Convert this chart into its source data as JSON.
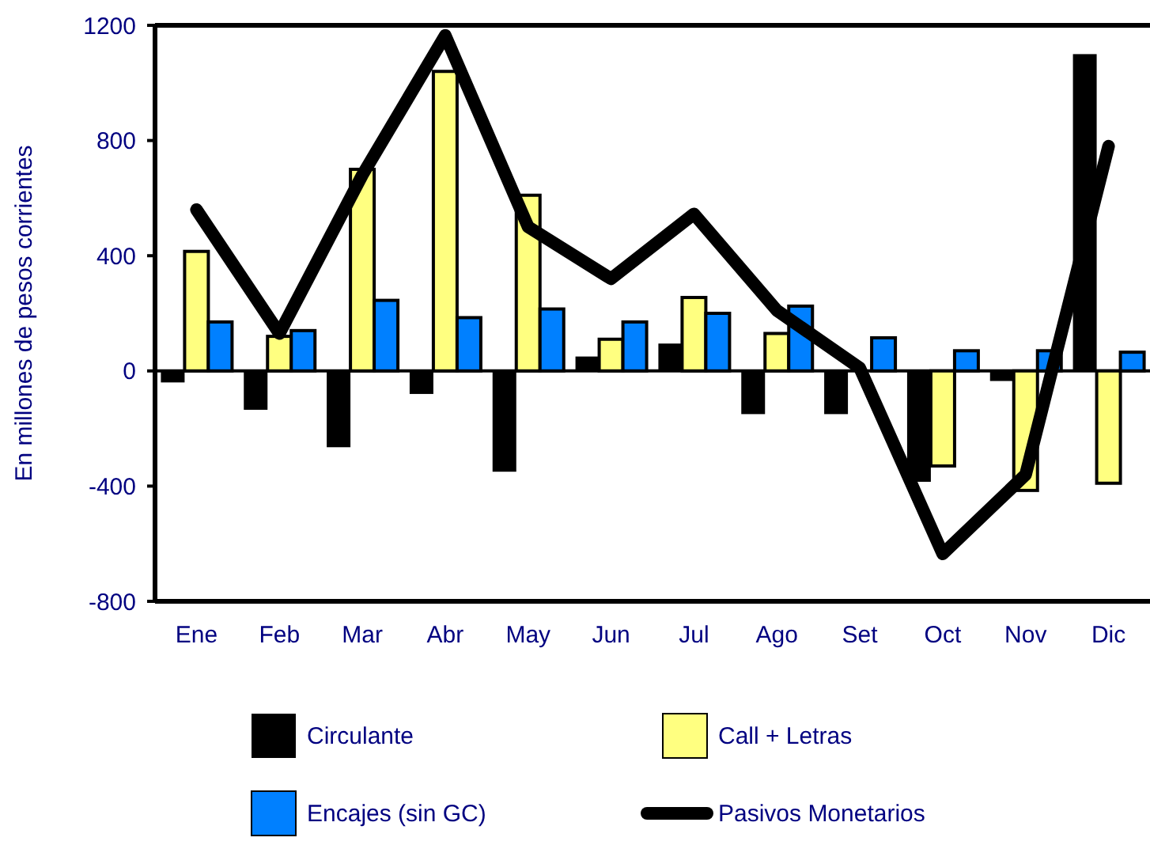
{
  "chart_data": {
    "type": "bar",
    "ylabel": "En millones de pesos corrientes",
    "categories": [
      "Ene",
      "Feb",
      "Mar",
      "Abr",
      "May",
      "Jun",
      "Jul",
      "Ago",
      "Set",
      "Oct",
      "Nov",
      "Dic"
    ],
    "series": [
      {
        "name": "Circulante",
        "color": "#000000",
        "values": [
          -40,
          -135,
          -265,
          -80,
          -350,
          50,
          95,
          -150,
          -150,
          -385,
          -35,
          1100
        ]
      },
      {
        "name": "Call + Letras",
        "color": "#ffff80",
        "values": [
          415,
          120,
          700,
          1040,
          610,
          110,
          255,
          130,
          0,
          -330,
          -415,
          -390
        ]
      },
      {
        "name": "Encajes (sin GC)",
        "color": "#0080ff",
        "values": [
          170,
          140,
          245,
          185,
          215,
          170,
          200,
          225,
          115,
          70,
          70,
          65
        ]
      },
      {
        "name": "Pasivos Monetarios",
        "type": "line",
        "color": "#000000",
        "values": [
          560,
          130,
          680,
          1165,
          500,
          320,
          545,
          210,
          10,
          -635,
          -360,
          780
        ]
      }
    ],
    "ref_lines": [
      {
        "axis": "y",
        "value": 0,
        "color": "#000000"
      }
    ],
    "ylim": [
      -800,
      1200
    ],
    "yticks": [
      -800,
      -400,
      0,
      400,
      800,
      1200
    ],
    "legend": "bottom",
    "grid": false
  }
}
